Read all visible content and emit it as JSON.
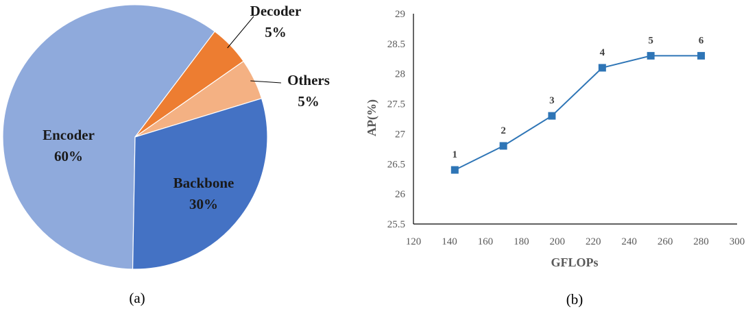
{
  "chart_data": [
    {
      "type": "pie",
      "caption": "(a)",
      "slices": [
        {
          "label": "Encoder",
          "value_label": "60%",
          "value": 60,
          "color": "#8faadc"
        },
        {
          "label": "Decoder",
          "value_label": "5%",
          "value": 5,
          "color": "#ed7d31"
        },
        {
          "label": "Others",
          "value_label": "5%",
          "value": 5,
          "color": "#f4b183"
        },
        {
          "label": "Backbone",
          "value_label": "30%",
          "value": 30,
          "color": "#4472c4"
        }
      ]
    },
    {
      "type": "line",
      "caption": "(b)",
      "xlabel": "GFLOPs",
      "ylabel": "AP(%)",
      "xlim": [
        120,
        300
      ],
      "ylim": [
        25.5,
        29
      ],
      "xticks": [
        120,
        140,
        160,
        180,
        200,
        220,
        240,
        260,
        280,
        300
      ],
      "yticks": [
        "25.5",
        "26",
        "26.5",
        "27",
        "27.5",
        "28",
        "28.5",
        "29"
      ],
      "grid": false,
      "series": [
        {
          "color": "#2e75b6",
          "marker": "square",
          "points": [
            {
              "label": "1",
              "x": 143,
              "y": 26.4
            },
            {
              "label": "2",
              "x": 170,
              "y": 26.8
            },
            {
              "label": "3",
              "x": 197,
              "y": 27.3
            },
            {
              "label": "4",
              "x": 225,
              "y": 28.1
            },
            {
              "label": "5",
              "x": 252,
              "y": 28.3
            },
            {
              "label": "6",
              "x": 280,
              "y": 28.3
            }
          ]
        }
      ]
    }
  ]
}
